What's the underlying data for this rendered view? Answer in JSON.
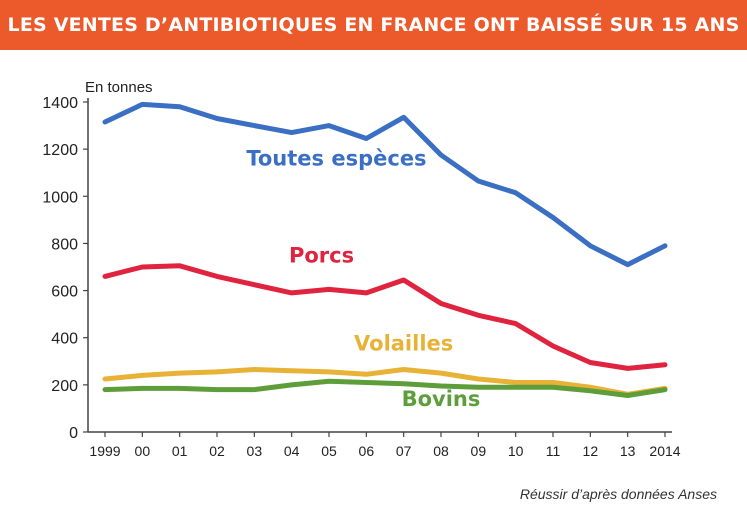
{
  "banner": {
    "title": "LES VENTES D’ANTIBIOTIQUES EN FRANCE ONT BAISSÉ SUR 15 ANS",
    "color": "#ec5a2c"
  },
  "source": "Réussir d’après données Anses",
  "chart_data": {
    "type": "line",
    "title": "LES VENTES D’ANTIBIOTIQUES EN FRANCE ONT BAISSÉ SUR 15 ANS",
    "xlabel": "",
    "ylabel": "En tonnes",
    "categories": [
      "1999",
      "00",
      "01",
      "02",
      "03",
      "04",
      "05",
      "06",
      "07",
      "08",
      "09",
      "10",
      "11",
      "12",
      "13",
      "2014"
    ],
    "yticks": [
      0,
      200,
      400,
      600,
      800,
      1000,
      1200,
      1400
    ],
    "ylim": [
      0,
      1400
    ],
    "grid": false,
    "series": [
      {
        "name": "Toutes espèces",
        "color": "#3a6fc4",
        "values": [
          1315,
          1390,
          1380,
          1330,
          1300,
          1270,
          1300,
          1245,
          1335,
          1175,
          1065,
          1015,
          910,
          790,
          710,
          790
        ]
      },
      {
        "name": "Porcs",
        "color": "#e0233f",
        "values": [
          660,
          700,
          705,
          660,
          625,
          590,
          605,
          590,
          645,
          545,
          495,
          460,
          365,
          295,
          270,
          285
        ]
      },
      {
        "name": "Volailles",
        "color": "#e8b237",
        "values": [
          225,
          240,
          250,
          255,
          265,
          260,
          255,
          245,
          265,
          250,
          225,
          210,
          210,
          190,
          160,
          185
        ]
      },
      {
        "name": "Bovins",
        "color": "#5d9e3a",
        "values": [
          180,
          185,
          185,
          180,
          180,
          200,
          215,
          210,
          205,
          195,
          190,
          190,
          190,
          175,
          155,
          180
        ]
      }
    ]
  }
}
